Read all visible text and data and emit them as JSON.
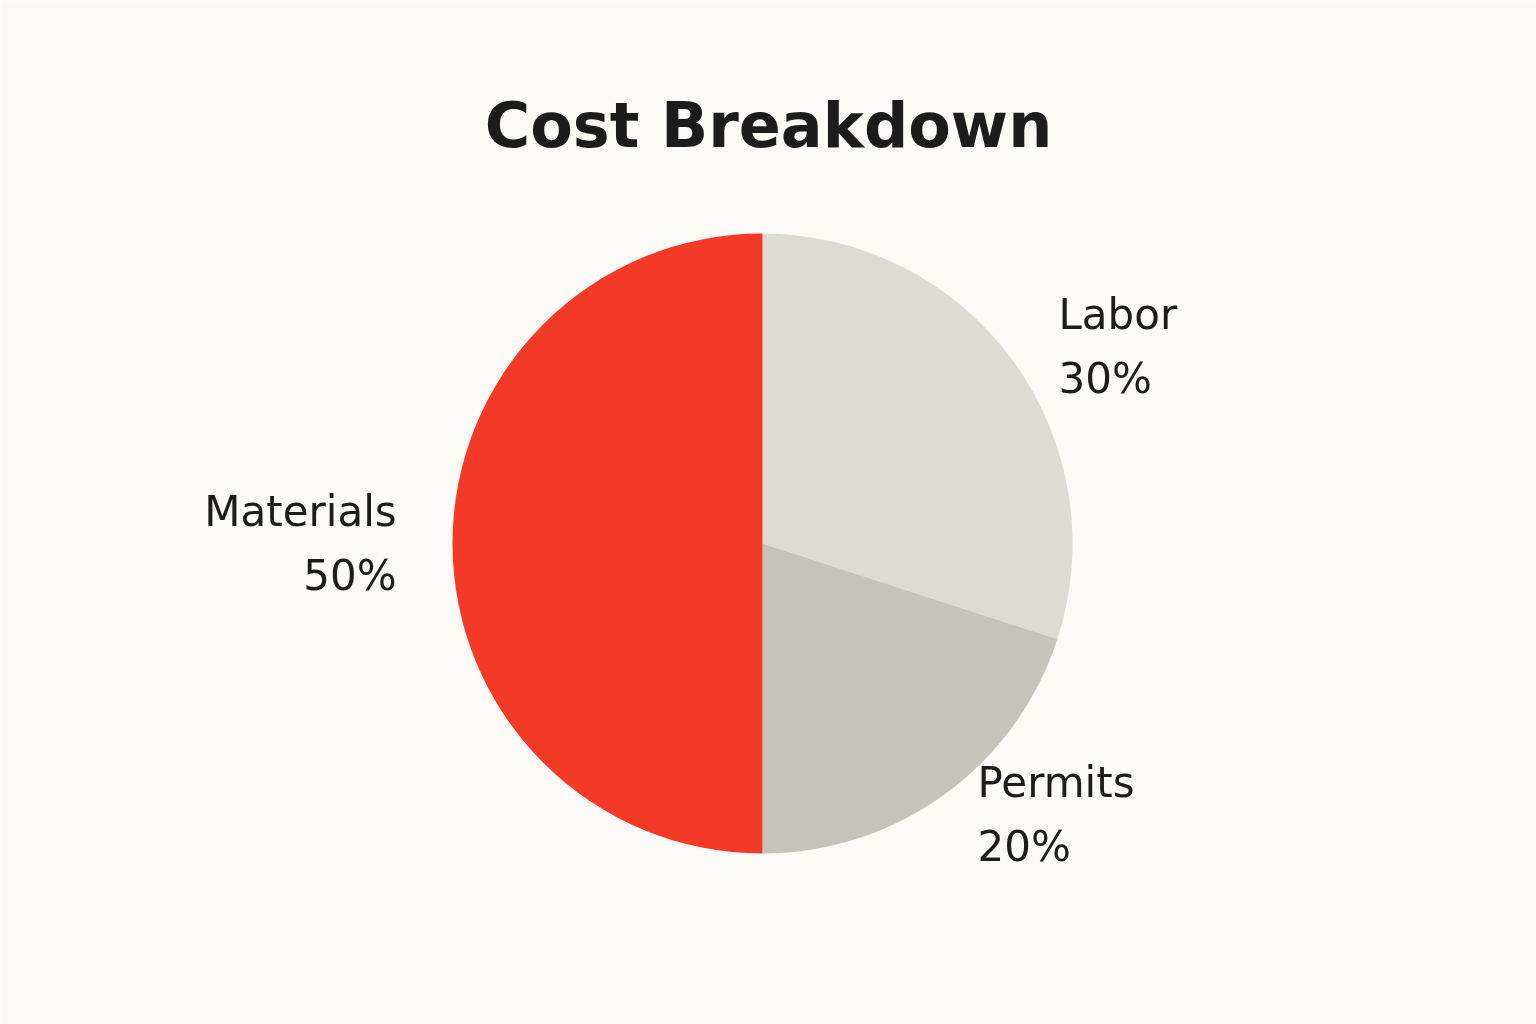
{
  "chart_data": {
    "type": "pie",
    "title": "Cost Breakdown",
    "categories": [
      "Labor",
      "Permits",
      "Materials"
    ],
    "values": [
      30,
      20,
      50
    ],
    "value_labels": [
      "30%",
      "20%",
      "50%"
    ],
    "colors": [
      "#dedbd5",
      "#c6c3bd",
      "#f23a27"
    ],
    "legend": false
  }
}
